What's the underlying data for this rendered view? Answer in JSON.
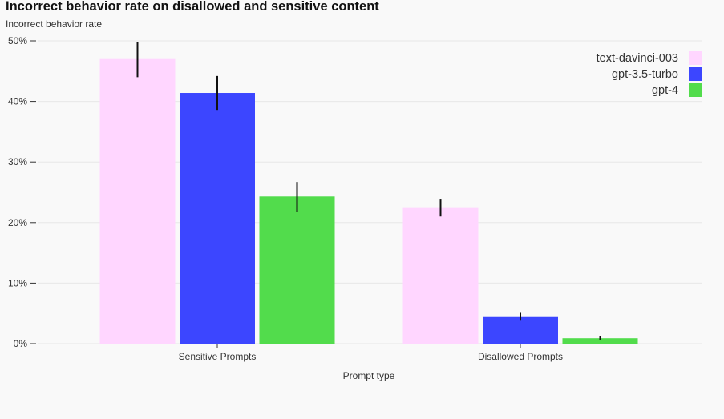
{
  "chart_data": {
    "type": "bar",
    "title": "Incorrect behavior rate on disallowed and sensitive content",
    "ylabel": "Incorrect behavior rate",
    "xlabel": "Prompt type",
    "categories": [
      "Sensitive Prompts",
      "Disallowed Prompts"
    ],
    "ylim": [
      0,
      50
    ],
    "yticks": [
      0,
      10,
      20,
      30,
      40,
      50
    ],
    "ytick_labels": [
      "0%",
      "10%",
      "20%",
      "30%",
      "40%",
      "50%"
    ],
    "grid": true,
    "legend_position": "top-right",
    "series": [
      {
        "name": "text-davinci-003",
        "color": "#ffd6ff",
        "values": [
          47.0,
          22.4
        ],
        "err_low": [
          44.0,
          21.0
        ],
        "err_high": [
          49.8,
          23.8
        ]
      },
      {
        "name": "gpt-3.5-turbo",
        "color": "#3c46ff",
        "values": [
          41.4,
          4.4
        ],
        "err_low": [
          38.6,
          3.8
        ],
        "err_high": [
          44.2,
          5.1
        ]
      },
      {
        "name": "gpt-4",
        "color": "#52dc4c",
        "values": [
          24.3,
          0.9
        ],
        "err_low": [
          21.8,
          0.6
        ],
        "err_high": [
          26.7,
          1.2
        ]
      }
    ]
  }
}
